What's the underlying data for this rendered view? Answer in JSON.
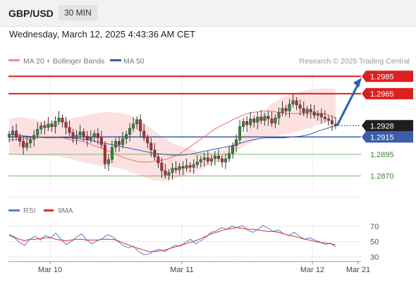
{
  "header": {
    "pair": "GBP/USD",
    "timeframe": "30 MIN"
  },
  "datetime": "Wednesday, March 12, 2025 4:43:36 AM CET",
  "legend": {
    "ma20": "MA 20 + Bollinger Bands",
    "ma50": "MA 50",
    "research": "Research © 2025 Trading Central"
  },
  "rsi_legend": {
    "rsi": "RSI",
    "ma9": "9MA"
  },
  "colors": {
    "up": "#2e8b3a",
    "down": "#c0282d",
    "ma20": "#f06a6a",
    "ma50": "#3b5ca8",
    "band": "#fde1e1",
    "resistance": "#dd1f1f",
    "support": "#72b96b",
    "arrow": "#2a62b0",
    "rsi": "#5a7bd8",
    "rsi_ma": "#d9302b"
  },
  "chart_data": [
    {
      "type": "candlestick",
      "title": "GBP/USD",
      "timeframe": "30 MIN",
      "x_labels": [
        "Mar 10",
        "Mar 11",
        "Mar 12",
        "Mar 21"
      ],
      "ylim": [
        1.2855,
        1.2995
      ],
      "current_price": "1.2928",
      "levels": [
        {
          "label": "1.2985",
          "value": 1.2985,
          "kind": "resistance",
          "style": "badge"
        },
        {
          "label": "1.2965",
          "value": 1.2965,
          "kind": "resistance",
          "style": "badge"
        },
        {
          "label": "1.2915",
          "value": 1.2915,
          "kind": "pivot",
          "style": "badge"
        },
        {
          "label": "1.2895",
          "value": 1.2895,
          "kind": "support",
          "style": "text"
        },
        {
          "label": "1.2870",
          "value": 1.287,
          "kind": "support",
          "style": "text"
        }
      ],
      "candles": [
        1.2918,
        1.2922,
        1.2915,
        1.291,
        1.2903,
        1.2908,
        1.2912,
        1.2917,
        1.2924,
        1.2928,
        1.2926,
        1.293,
        1.2927,
        1.2933,
        1.2937,
        1.2932,
        1.2926,
        1.292,
        1.2914,
        1.2917,
        1.2921,
        1.2916,
        1.2912,
        1.2915,
        1.2919,
        1.2914,
        1.2906,
        1.2884,
        1.2889,
        1.2903,
        1.291,
        1.2906,
        1.2913,
        1.2918,
        1.2925,
        1.293,
        1.2935,
        1.2922,
        1.2914,
        1.2908,
        1.29,
        1.2892,
        1.2885,
        1.2876,
        1.2871,
        1.2874,
        1.2879,
        1.2877,
        1.2881,
        1.2879,
        1.2882,
        1.288,
        1.2883,
        1.2886,
        1.2889,
        1.2891,
        1.2887,
        1.289,
        1.2893,
        1.289,
        1.2886,
        1.289,
        1.2896,
        1.2905,
        1.2912,
        1.2927,
        1.2933,
        1.2929,
        1.2936,
        1.2932,
        1.2938,
        1.2934,
        1.2939,
        1.2936,
        1.2931,
        1.2937,
        1.2943,
        1.2948,
        1.2945,
        1.2953,
        1.2957,
        1.2952,
        1.2948,
        1.2943,
        1.2947,
        1.2944,
        1.294,
        1.2942,
        1.2938,
        1.2936,
        1.2934,
        1.293,
        1.2928
      ],
      "ma20": [
        1.2912,
        1.2912,
        1.2912,
        1.2913,
        1.2914,
        1.2915,
        1.2915,
        1.2915,
        1.2915,
        1.2914,
        1.2912,
        1.2911,
        1.291,
        1.2908,
        1.2905,
        1.2903,
        1.29,
        1.2897,
        1.2894,
        1.2891,
        1.2889,
        1.2887,
        1.2886,
        1.2886,
        1.2887,
        1.2888,
        1.2889,
        1.2892,
        1.2895,
        1.2899,
        1.2904,
        1.2909,
        1.2914,
        1.2919,
        1.2924,
        1.2928,
        1.2931,
        1.2935,
        1.2938,
        1.2941,
        1.2943,
        1.2944,
        1.2945,
        1.2945,
        1.2944,
        1.2943,
        1.2942,
        1.2942,
        1.2942,
        1.2942,
        1.2942,
        1.2942,
        1.2942,
        1.294,
        1.2937
      ],
      "ma50": [
        1.2918,
        1.2917,
        1.2916,
        1.2915,
        1.2914,
        1.2914,
        1.2914,
        1.2914,
        1.2913,
        1.2912,
        1.291,
        1.2908,
        1.2906,
        1.2904,
        1.2902,
        1.29,
        1.2898,
        1.2896,
        1.2895,
        1.2894,
        1.2894,
        1.2895,
        1.2897,
        1.2899,
        1.2901,
        1.2903,
        1.2905,
        1.2908,
        1.2911,
        1.2913,
        1.2914,
        1.2914,
        1.2914,
        1.2915,
        1.2916,
        1.2918,
        1.2922,
        1.2925,
        1.2928
      ],
      "band_upper": [
        1.2936,
        1.2938,
        1.2937,
        1.2935,
        1.2933,
        1.2933,
        1.2935,
        1.2937,
        1.2939,
        1.2941,
        1.2943,
        1.2944,
        1.2943,
        1.2941,
        1.2936,
        1.293,
        1.2922,
        1.2915,
        1.2908,
        1.2904,
        1.2901,
        1.2898,
        1.2897,
        1.2898,
        1.2902,
        1.291,
        1.292,
        1.2932,
        1.2944,
        1.2954,
        1.296,
        1.2964,
        1.2967,
        1.2969,
        1.2971,
        1.2971,
        1.2971
      ],
      "band_lower": [
        1.2895,
        1.2894,
        1.2893,
        1.2893,
        1.2893,
        1.2893,
        1.2891,
        1.2889,
        1.2886,
        1.2884,
        1.2882,
        1.2881,
        1.2879,
        1.2876,
        1.2872,
        1.2868,
        1.2865,
        1.2864,
        1.2866,
        1.2869,
        1.2873,
        1.2877,
        1.2882,
        1.2887,
        1.2893,
        1.2899,
        1.2905,
        1.291,
        1.2914,
        1.2916,
        1.2917,
        1.2919,
        1.2922,
        1.2925,
        1.2929,
        1.2932,
        1.2936
      ]
    },
    {
      "type": "line",
      "title": "RSI",
      "series": [
        {
          "name": "RSI",
          "values": [
            58,
            55,
            49,
            45,
            53,
            57,
            52,
            58,
            55,
            61,
            53,
            46,
            50,
            56,
            60,
            52,
            47,
            51,
            54,
            59,
            56,
            50,
            45,
            42,
            44,
            37,
            33,
            34,
            38,
            40,
            37,
            41,
            45,
            44,
            49,
            53,
            47,
            51,
            56,
            62,
            64,
            68,
            66,
            70,
            68,
            71,
            65,
            62,
            66,
            71,
            67,
            63,
            65,
            60,
            58,
            62,
            57,
            53,
            55,
            52,
            49,
            46,
            48,
            43
          ]
        },
        {
          "name": "9MA",
          "values": [
            59,
            56,
            53,
            51,
            53,
            53,
            54,
            55,
            55,
            53,
            52,
            51,
            52,
            53,
            53,
            52,
            52,
            52,
            53,
            53,
            53,
            51,
            48,
            46,
            43,
            41,
            39,
            37,
            37,
            38,
            39,
            41,
            43,
            45,
            47,
            49,
            51,
            54,
            57,
            60,
            62,
            64,
            66,
            67,
            68,
            67,
            66,
            66,
            65,
            64,
            63,
            63,
            62,
            60,
            58,
            57,
            55,
            53,
            52,
            50,
            49,
            48,
            47,
            46
          ]
        }
      ],
      "ylim": [
        25,
        78
      ],
      "y_ticks": [
        "70",
        "50",
        "30"
      ]
    }
  ]
}
